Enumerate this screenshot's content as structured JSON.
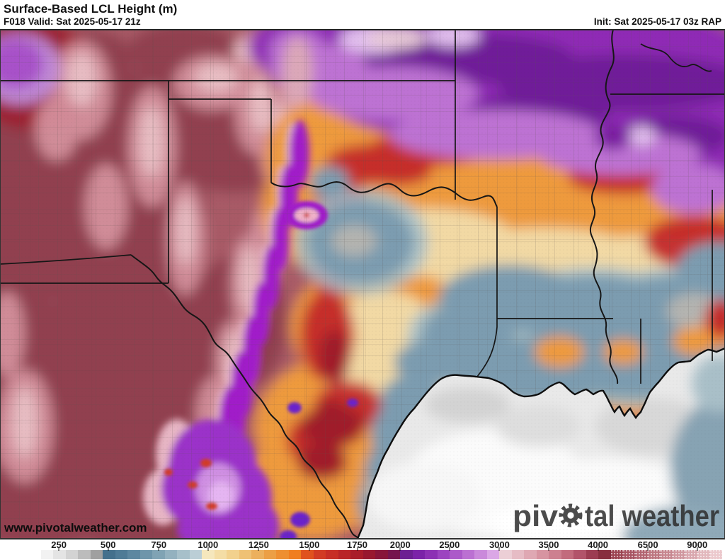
{
  "header": {
    "title": "Surface-Based LCL Height (m)",
    "valid": "F018 Valid: Sat 2025-05-17 21z",
    "init": "Init: Sat 2025-05-17 03z RAP"
  },
  "map": {
    "url_text": "www.pivotalweather.com",
    "watermark_pre": "piv",
    "watermark_post": "tal weather"
  },
  "colorbar": {
    "units": "m",
    "labels": [
      {
        "text": "250",
        "pct": 4.4
      },
      {
        "text": "500",
        "pct": 11.5
      },
      {
        "text": "750",
        "pct": 18.8
      },
      {
        "text": "1000",
        "pct": 25.9
      },
      {
        "text": "1250",
        "pct": 33.2
      },
      {
        "text": "1500",
        "pct": 40.5
      },
      {
        "text": "1750",
        "pct": 47.4
      },
      {
        "text": "2000",
        "pct": 53.6
      },
      {
        "text": "2500",
        "pct": 60.7
      },
      {
        "text": "3000",
        "pct": 67.9
      },
      {
        "text": "3500",
        "pct": 75.0
      },
      {
        "text": "4000",
        "pct": 82.1
      },
      {
        "text": "6500",
        "pct": 89.3
      },
      {
        "text": "9000",
        "pct": 96.4
      }
    ],
    "colors": [
      "#ffffff",
      "#f2f2f2",
      "#e4e4e4",
      "#d3d3d3",
      "#bcbcbc",
      "#a0a0a0",
      "#44708c",
      "#4f7b96",
      "#5d87a0",
      "#6e95aa",
      "#80a3b4",
      "#93b1bf",
      "#a7c0ca",
      "#bbced6",
      "#f5e7bd",
      "#f4dda5",
      "#f2d18d",
      "#efc175",
      "#ecb05d",
      "#ec9f45",
      "#ee8f31",
      "#f07e1f",
      "#e0521e",
      "#d23b24",
      "#c72e26",
      "#b92427",
      "#a91d2a",
      "#98182f",
      "#871539",
      "#75154d",
      "#6c1f92",
      "#7b22a8",
      "#8c30b4",
      "#9c44c0",
      "#ac59c9",
      "#bb70d2",
      "#ca89db",
      "#dba7e6",
      "#eccfd6",
      "#e6bcc5",
      "#dfa8b3",
      "#d794a1",
      "#cd8090",
      "#c26b7d",
      "#b2536a",
      "#9c3c52",
      "#872e3f",
      "#9c4552",
      "#a85563",
      "#b36672",
      "#bd7781",
      "#c78790",
      "#d0979f",
      "#d9a7ae",
      "#e2b8bd",
      "#ecc9cd"
    ],
    "stipple_from": 47
  }
}
